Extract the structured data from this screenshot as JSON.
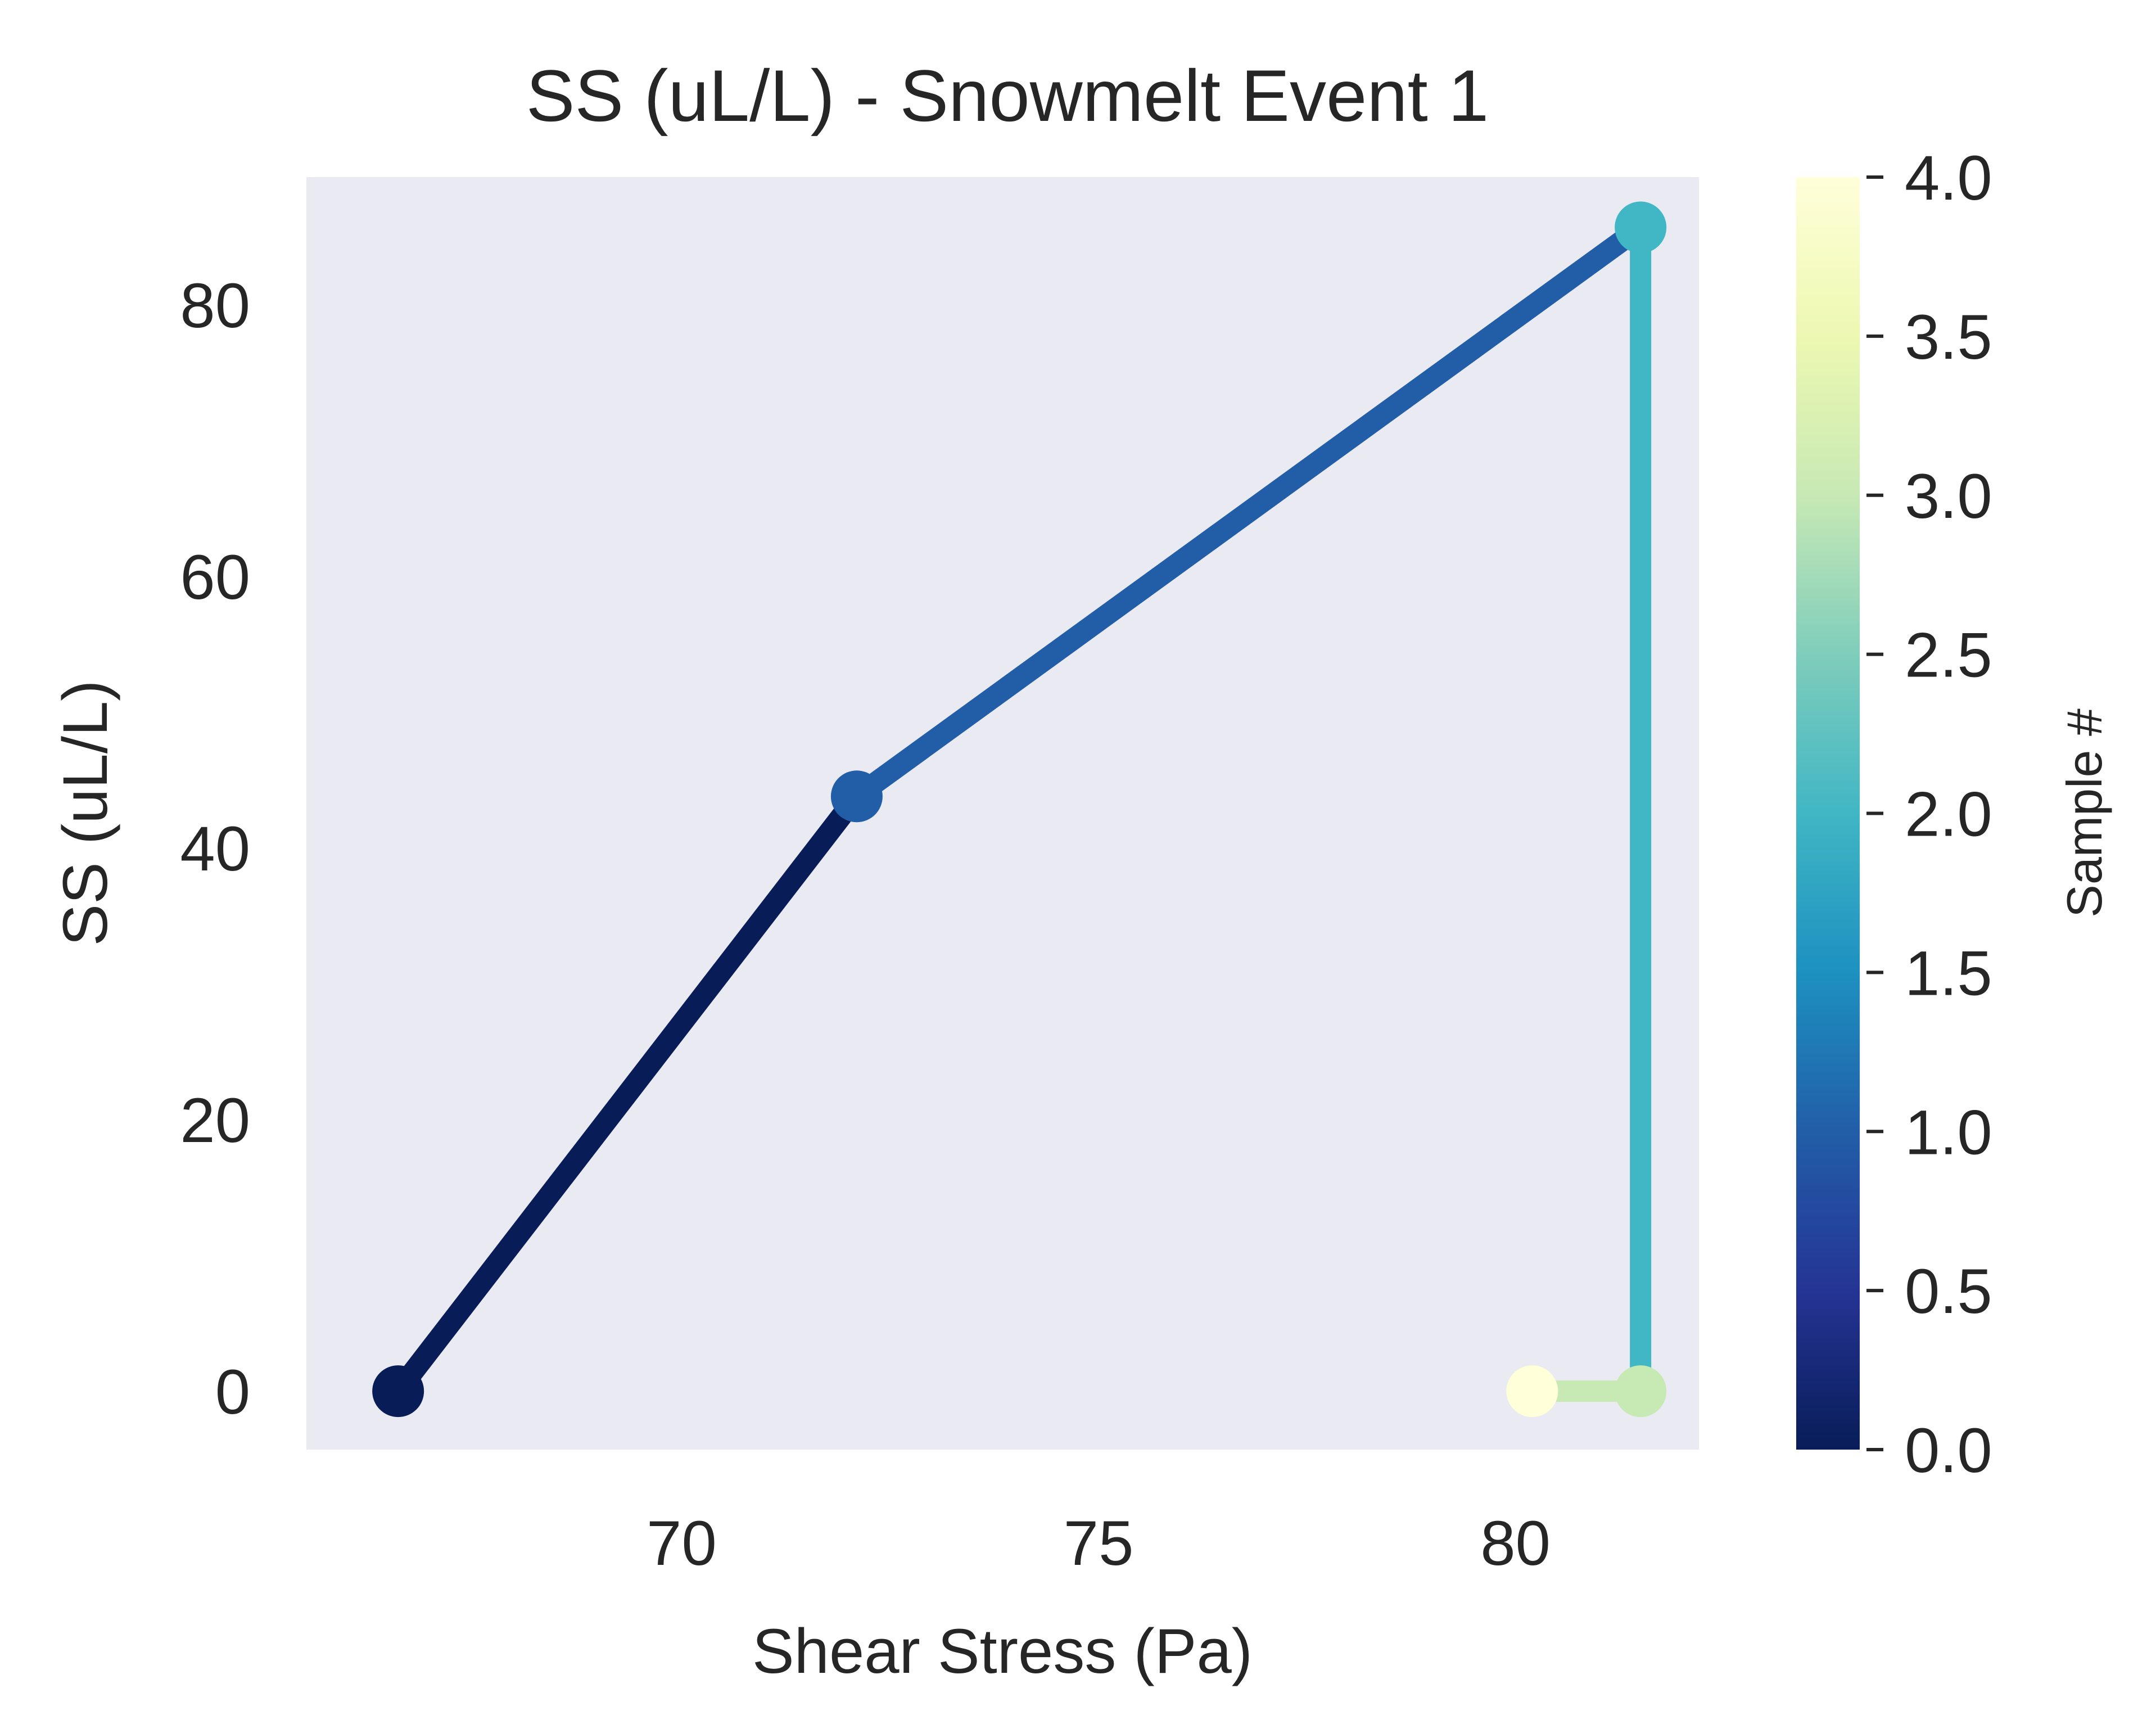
{
  "chart_data": {
    "type": "line",
    "title": "SS (uL/L) - Snowmelt Event 1",
    "xlabel": "Shear Stress (Pa)",
    "ylabel": "SS (uL/L)",
    "xlim": [
      65.5,
      82.2
    ],
    "ylim": [
      -4.3,
      89.4
    ],
    "xticks": [
      70,
      75,
      80
    ],
    "yticks": [
      0,
      20,
      40,
      60,
      80
    ],
    "x": [
      66.6,
      72.1,
      81.5,
      81.5,
      80.2
    ],
    "y": [
      0,
      43.8,
      85.7,
      0,
      0
    ],
    "sample_numbers": [
      0,
      1,
      2,
      3,
      4
    ],
    "grid": false,
    "background": "#eaeaf2",
    "colormap": "YlGnBu_r",
    "point_colors": [
      "#081d58",
      "#225ea8",
      "#41b6c4",
      "#c7e9b4",
      "#ffffd9"
    ],
    "colorbar": {
      "label": "Sample #",
      "range": [
        0.0,
        4.0
      ],
      "ticks": [
        "0.0",
        "0.5",
        "1.0",
        "1.5",
        "2.0",
        "2.5",
        "3.0",
        "3.5",
        "4.0"
      ],
      "stops": [
        "#081d58",
        "#253494",
        "#225ea8",
        "#1d91c0",
        "#41b6c4",
        "#7fcdbb",
        "#c7e9b4",
        "#edf8b1",
        "#ffffd9"
      ]
    }
  }
}
